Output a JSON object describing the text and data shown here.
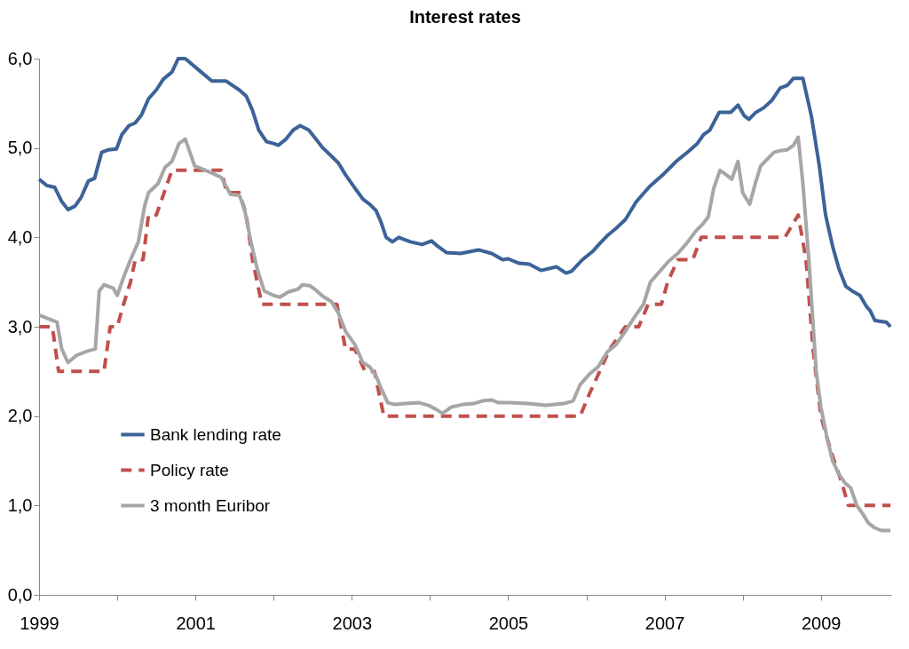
{
  "chart_data": {
    "type": "line",
    "title": "Interest rates",
    "xlim": [
      1999,
      2009.9
    ],
    "ylim": [
      0,
      6
    ],
    "xticks": [
      1999,
      {
        "value": 2000,
        "label": null
      },
      2001,
      {
        "value": 2002,
        "label": null
      },
      2003,
      {
        "value": 2004,
        "label": null
      },
      2005,
      {
        "value": 2006,
        "label": null
      },
      2007,
      {
        "value": 2008,
        "label": null
      },
      2009
    ],
    "yticks": [
      {
        "value": 0,
        "label": "0,0"
      },
      {
        "value": 1,
        "label": "1,0"
      },
      {
        "value": 2,
        "label": "2,0"
      },
      {
        "value": 3,
        "label": "3,0"
      },
      {
        "value": 4,
        "label": "4,0"
      },
      {
        "value": 5,
        "label": "5,0"
      },
      {
        "value": 6,
        "label": "6,0"
      }
    ],
    "grid": false,
    "legend": "bottom left",
    "series": [
      {
        "name": "Bank lending rate",
        "color": "#3b6398",
        "line_style": "solid",
        "x": [
          1999.0,
          1999.1,
          1999.2,
          1999.29,
          1999.37,
          1999.46,
          1999.54,
          1999.63,
          1999.71,
          1999.8,
          1999.89,
          1999.99,
          2000.06,
          2000.15,
          2000.23,
          2000.31,
          2000.4,
          2000.5,
          2000.59,
          2000.7,
          2000.78,
          2000.87,
          2001.1,
          2001.21,
          2001.39,
          2001.56,
          2001.65,
          2001.73,
          2001.81,
          2001.91,
          2002.0,
          2002.06,
          2002.16,
          2002.25,
          2002.34,
          2002.45,
          2002.54,
          2002.63,
          2002.75,
          2002.83,
          2002.92,
          2003.04,
          2003.14,
          2003.23,
          2003.31,
          2003.37,
          2003.44,
          2003.52,
          2003.6,
          2003.75,
          2003.9,
          2004.02,
          2004.1,
          2004.21,
          2004.39,
          2004.62,
          2004.79,
          2004.93,
          2005.0,
          2005.14,
          2005.27,
          2005.42,
          2005.62,
          2005.74,
          2005.81,
          2005.95,
          2006.09,
          2006.17,
          2006.27,
          2006.38,
          2006.5,
          2006.64,
          2006.69,
          2006.81,
          2006.98,
          2007.15,
          2007.29,
          2007.42,
          2007.5,
          2007.58,
          2007.7,
          2007.85,
          2007.94,
          2008.02,
          2008.08,
          2008.17,
          2008.27,
          2008.37,
          2008.48,
          2008.57,
          2008.65,
          2008.77,
          2008.88,
          2008.98,
          2009.06,
          2009.15,
          2009.23,
          2009.32,
          2009.4,
          2009.5,
          2009.58,
          2009.63,
          2009.69,
          2009.84,
          2009.89
        ],
        "values": [
          4.65,
          4.58,
          4.56,
          4.4,
          4.31,
          4.35,
          4.45,
          4.63,
          4.66,
          4.95,
          4.98,
          4.99,
          5.15,
          5.25,
          5.28,
          5.37,
          5.55,
          5.65,
          5.77,
          5.85,
          6.0,
          6.0,
          5.83,
          5.75,
          5.75,
          5.65,
          5.58,
          5.42,
          5.2,
          5.07,
          5.05,
          5.03,
          5.1,
          5.2,
          5.25,
          5.2,
          5.1,
          5.0,
          4.9,
          4.83,
          4.7,
          4.55,
          4.43,
          4.37,
          4.3,
          4.18,
          4.0,
          3.95,
          4.0,
          3.95,
          3.92,
          3.96,
          3.9,
          3.83,
          3.82,
          3.86,
          3.82,
          3.75,
          3.76,
          3.71,
          3.7,
          3.63,
          3.67,
          3.6,
          3.62,
          3.75,
          3.85,
          3.93,
          4.02,
          4.1,
          4.2,
          4.4,
          4.45,
          4.57,
          4.7,
          4.85,
          4.95,
          5.05,
          5.15,
          5.2,
          5.4,
          5.4,
          5.48,
          5.36,
          5.32,
          5.4,
          5.45,
          5.53,
          5.67,
          5.7,
          5.78,
          5.78,
          5.35,
          4.8,
          4.25,
          3.9,
          3.65,
          3.45,
          3.4,
          3.35,
          3.23,
          3.18,
          3.07,
          3.05,
          3.0
        ]
      },
      {
        "name": "Policy rate",
        "color": "#c0504d",
        "line_style": "dashed",
        "x": [
          1999.0,
          1999.17,
          1999.25,
          1999.83,
          1999.91,
          2000.0,
          2000.08,
          2000.17,
          2000.23,
          2000.33,
          2000.4,
          2000.5,
          2000.6,
          2000.7,
          2001.33,
          2001.4,
          2001.56,
          2001.65,
          2001.73,
          2001.85,
          2002.81,
          2002.92,
          2003.04,
          2003.17,
          2003.29,
          2003.41,
          2005.92,
          2006.04,
          2006.17,
          2006.3,
          2006.5,
          2006.67,
          2006.79,
          2006.96,
          2007.04,
          2007.17,
          2007.36,
          2007.47,
          2008.54,
          2008.71,
          2008.81,
          2008.9,
          2009.0,
          2009.08,
          2009.17,
          2009.27,
          2009.35,
          2009.89
        ],
        "values": [
          3.0,
          3.0,
          2.5,
          2.5,
          3.0,
          3.0,
          3.25,
          3.5,
          3.75,
          3.75,
          4.25,
          4.25,
          4.5,
          4.75,
          4.75,
          4.5,
          4.5,
          4.25,
          3.75,
          3.25,
          3.25,
          2.75,
          2.75,
          2.5,
          2.5,
          2.0,
          2.0,
          2.25,
          2.5,
          2.75,
          3.0,
          3.0,
          3.25,
          3.25,
          3.5,
          3.75,
          3.75,
          4.0,
          4.0,
          4.25,
          3.75,
          2.75,
          2.0,
          1.75,
          1.5,
          1.25,
          1.0,
          1.0
        ]
      },
      {
        "name": "3 month Euribor",
        "color": "#a6a6a6",
        "line_style": "solid",
        "x": [
          1999.0,
          1999.23,
          1999.29,
          1999.37,
          1999.48,
          1999.63,
          1999.72,
          1999.77,
          1999.83,
          1999.95,
          2000.0,
          2000.08,
          2000.17,
          2000.27,
          2000.35,
          2000.4,
          2000.52,
          2000.61,
          2000.7,
          2000.79,
          2000.87,
          2000.99,
          2001.1,
          2001.21,
          2001.33,
          2001.45,
          2001.56,
          2001.62,
          2001.71,
          2001.79,
          2001.88,
          2002.0,
          2002.08,
          2002.19,
          2002.31,
          2002.37,
          2002.46,
          2002.54,
          2002.63,
          2002.74,
          2002.83,
          2002.92,
          2003.04,
          2003.14,
          2003.23,
          2003.31,
          2003.38,
          2003.46,
          2003.55,
          2003.69,
          2003.86,
          2003.98,
          2004.07,
          2004.16,
          2004.27,
          2004.42,
          2004.56,
          2004.67,
          2004.79,
          2004.88,
          2005.02,
          2005.25,
          2005.48,
          2005.71,
          2005.83,
          2005.92,
          2006.04,
          2006.15,
          2006.27,
          2006.38,
          2006.5,
          2006.61,
          2006.73,
          2006.82,
          2006.94,
          2007.05,
          2007.17,
          2007.28,
          2007.4,
          2007.49,
          2007.56,
          2007.63,
          2007.71,
          2007.79,
          2007.86,
          2007.94,
          2008.0,
          2008.09,
          2008.16,
          2008.23,
          2008.32,
          2008.4,
          2008.48,
          2008.57,
          2008.65,
          2008.71,
          2008.77,
          2008.85,
          2008.94,
          2009.0,
          2009.08,
          2009.15,
          2009.23,
          2009.31,
          2009.38,
          2009.46,
          2009.54,
          2009.61,
          2009.69,
          2009.77,
          2009.89
        ],
        "values": [
          3.13,
          3.05,
          2.75,
          2.6,
          2.68,
          2.73,
          2.75,
          3.4,
          3.47,
          3.43,
          3.35,
          3.55,
          3.75,
          3.95,
          4.35,
          4.5,
          4.6,
          4.78,
          4.85,
          5.05,
          5.1,
          4.8,
          4.76,
          4.72,
          4.67,
          4.48,
          4.47,
          4.35,
          3.95,
          3.65,
          3.4,
          3.35,
          3.33,
          3.39,
          3.42,
          3.47,
          3.46,
          3.41,
          3.34,
          3.28,
          3.15,
          2.95,
          2.8,
          2.6,
          2.55,
          2.45,
          2.3,
          2.15,
          2.13,
          2.14,
          2.15,
          2.12,
          2.08,
          2.03,
          2.1,
          2.13,
          2.14,
          2.17,
          2.18,
          2.15,
          2.15,
          2.14,
          2.12,
          2.14,
          2.17,
          2.35,
          2.47,
          2.55,
          2.72,
          2.8,
          2.95,
          3.1,
          3.25,
          3.5,
          3.62,
          3.73,
          3.82,
          3.93,
          4.07,
          4.15,
          4.23,
          4.55,
          4.75,
          4.7,
          4.65,
          4.85,
          4.5,
          4.37,
          4.6,
          4.8,
          4.88,
          4.95,
          4.97,
          4.98,
          5.03,
          5.12,
          4.6,
          3.7,
          2.5,
          2.1,
          1.75,
          1.5,
          1.35,
          1.25,
          1.2,
          1.0,
          0.9,
          0.8,
          0.75,
          0.72,
          0.72
        ]
      }
    ]
  }
}
